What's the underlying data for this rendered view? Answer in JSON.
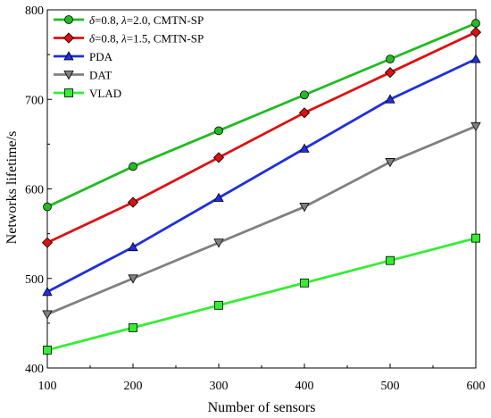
{
  "chart_data": {
    "type": "line",
    "title": "",
    "xlabel": "Number of sensors",
    "ylabel": "Networks lifetime/s",
    "xlim": [
      100,
      600
    ],
    "ylim": [
      400,
      800
    ],
    "x": [
      100,
      200,
      300,
      400,
      500,
      600
    ],
    "xticks": [
      "100",
      "200",
      "300",
      "400",
      "500",
      "600"
    ],
    "yticks": [
      "400",
      "500",
      "600",
      "700",
      "800"
    ],
    "grid": false,
    "legend_position": "top-left",
    "series": [
      {
        "name": "δ=0.8, λ=2.0, CMTN-SP",
        "name_parts": [
          "δ",
          "=0.8, ",
          "λ",
          "=2.0, CMTN-SP"
        ],
        "color": "#22bb22",
        "marker": "circle",
        "values": [
          580,
          625,
          665,
          705,
          745,
          785
        ]
      },
      {
        "name": "δ=0.8, λ=1.5, CMTN-SP",
        "name_parts": [
          "δ",
          "=0.8, ",
          "λ",
          "=1.5, CMTN-SP"
        ],
        "color": "#dd1111",
        "marker": "diamond",
        "values": [
          540,
          585,
          635,
          685,
          730,
          775
        ]
      },
      {
        "name": "PDA",
        "color": "#1f2fe0",
        "marker": "triangle-up",
        "values": [
          485,
          535,
          590,
          645,
          700,
          745
        ]
      },
      {
        "name": "DAT",
        "color": "#808080",
        "marker": "triangle-down",
        "values": [
          460,
          500,
          540,
          580,
          630,
          670
        ]
      },
      {
        "name": "VLAD",
        "color": "#33ee33",
        "marker": "square",
        "values": [
          420,
          445,
          470,
          495,
          520,
          545
        ]
      }
    ]
  }
}
